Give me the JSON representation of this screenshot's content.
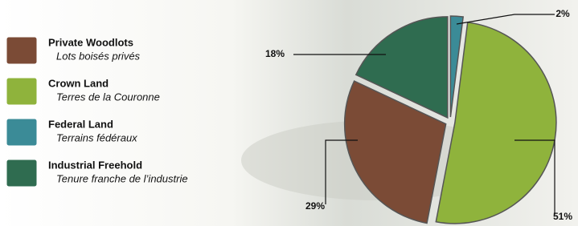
{
  "chart_data": {
    "type": "pie",
    "categories": [
      "Private Woodlots",
      "Crown Land",
      "Federal Land",
      "Industrial Freehold"
    ],
    "french_labels": [
      "Lots boisés privés",
      "Terres de la Couronne",
      "Terrains fédéraux",
      "Tenure franche de l’industrie"
    ],
    "values": [
      29,
      51,
      2,
      18
    ],
    "value_labels": [
      "29%",
      "51%",
      "2%",
      "18%"
    ],
    "colors": [
      "#7b4b36",
      "#8fb33c",
      "#3b8b97",
      "#2f6c50"
    ]
  }
}
